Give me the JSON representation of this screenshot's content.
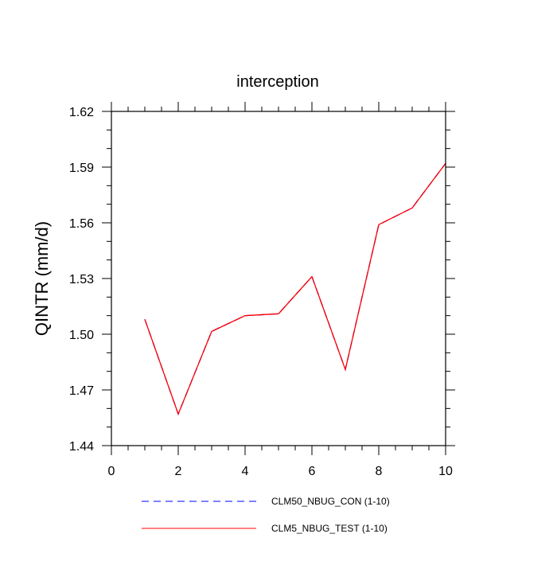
{
  "chart_data": {
    "type": "line",
    "title": "interception",
    "xlabel": "",
    "ylabel": "QINTR  (mm/d)",
    "xlim": [
      0,
      10
    ],
    "ylim": [
      1.44,
      1.62
    ],
    "xticks": [
      0,
      2,
      4,
      6,
      8,
      10
    ],
    "xtick_labels": [
      "0",
      "2",
      "4",
      "6",
      "8",
      "10"
    ],
    "yticks": [
      1.44,
      1.47,
      1.5,
      1.53,
      1.56,
      1.59,
      1.62
    ],
    "ytick_labels": [
      "1.44",
      "1.47",
      "1.50",
      "1.53",
      "1.56",
      "1.59",
      "1.62"
    ],
    "x": [
      1,
      2,
      3,
      4,
      5,
      6,
      7,
      8,
      9,
      10
    ],
    "series": [
      {
        "name": "CLM50_NBUG_CON (1-10)",
        "color": "#0000ff",
        "dash": "dashed",
        "values": [
          1.508,
          1.457,
          1.5015,
          1.51,
          1.511,
          1.531,
          1.481,
          1.559,
          1.568,
          1.592
        ]
      },
      {
        "name": "CLM5_NBUG_TEST (1-10)",
        "color": "#ff0000",
        "dash": "solid",
        "values": [
          1.508,
          1.457,
          1.5015,
          1.51,
          1.511,
          1.531,
          1.481,
          1.559,
          1.568,
          1.592
        ]
      }
    ],
    "grid": false,
    "legend_position": "bottom"
  }
}
